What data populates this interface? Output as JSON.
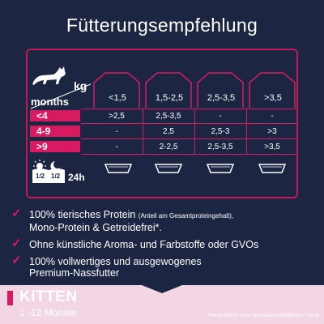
{
  "title": "Fütterungsempfehlung",
  "table": {
    "unit_kg": "kg",
    "unit_months": "months",
    "columns": [
      "<1,5",
      "1,5-2,5",
      "2,5-3,5",
      ">3,5"
    ],
    "rows": [
      {
        "label": "<4",
        "values": [
          ">2,5",
          "2,5-3,5",
          "-",
          "-"
        ]
      },
      {
        "label": "4-9",
        "values": [
          "-",
          "2,5",
          "2,5-3",
          ">3"
        ]
      },
      {
        "label": ">9",
        "values": [
          "-",
          "2-2,5",
          "2,5-3,5",
          ">3,5"
        ]
      }
    ],
    "feeding_fraction_left": "1/2",
    "feeding_fraction_right": "1/2",
    "feeding_time": "24h"
  },
  "bullets": [
    {
      "main": "100% tierisches Protein ",
      "small": "(Anteil am Gesamtproteingehalt),",
      "line2": "Mono-Protein & Getreidefrei*."
    },
    {
      "main": "Ohne künstliche Aroma- und Farbstoffe oder GVOs",
      "small": "",
      "line2": ""
    },
    {
      "main": "100% vollwertiges und ausgewogenes",
      "small": "",
      "line2": "Premium-Nassfutter"
    }
  ],
  "kitten": {
    "title": "KITTEN",
    "subtitle": "1 -12 Monate"
  },
  "footnote": "*Hergestellt in einer getreideverarbeitenden Fabrik",
  "colors": {
    "background": "#1c2541",
    "accent": "#d81b60",
    "band": "#f3d6e6"
  }
}
